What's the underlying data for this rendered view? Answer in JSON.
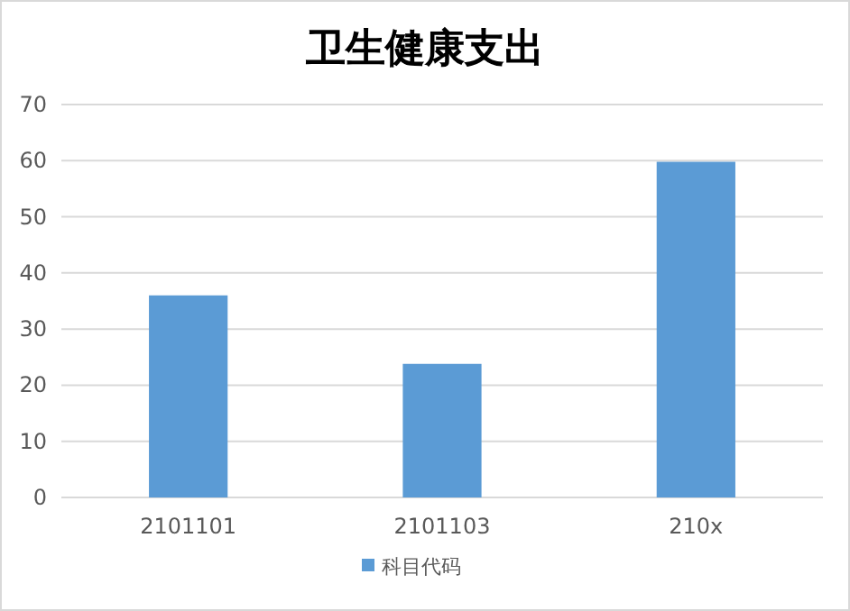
{
  "chart_data": {
    "type": "bar",
    "title": "卫生健康支出",
    "categories": [
      "2101101",
      "2101103",
      "210x"
    ],
    "series": [
      {
        "name": "科目代码",
        "color": "#5b9bd5",
        "values": [
          36,
          23.8,
          59.8
        ]
      }
    ],
    "ylim": [
      0,
      70
    ],
    "yticks": [
      0,
      10,
      20,
      30,
      40,
      50,
      60,
      70
    ],
    "grid": "y",
    "legend": "bottom"
  }
}
